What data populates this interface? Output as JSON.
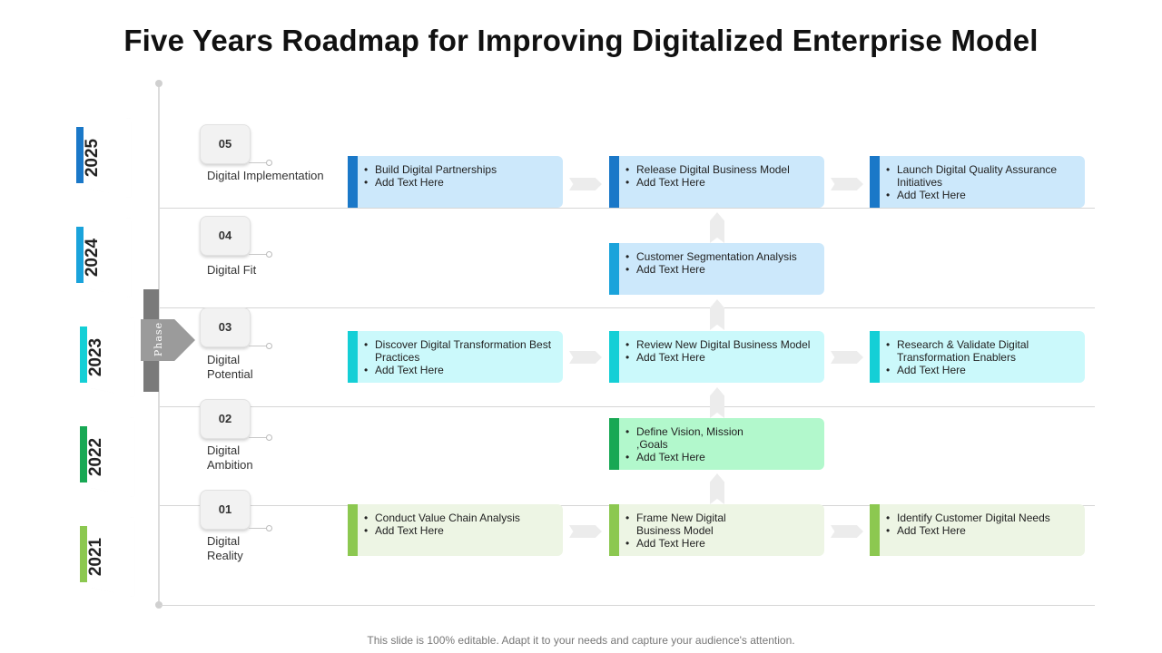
{
  "title": "Five Years Roadmap for Improving Digitalized Enterprise Model",
  "footer": "This slide is 100% editable. Adapt it to your needs and capture your audience's attention.",
  "phase_label": "Phase",
  "colors": {
    "2025": "#1a78c8",
    "2024": "#1aa3db",
    "2023": "#14cfd6",
    "2022": "#18a854",
    "2021": "#8cc850"
  },
  "years": [
    "2025",
    "2024",
    "2023",
    "2022",
    "2021"
  ],
  "phases": [
    {
      "number": "05",
      "name": "Digital Implementation"
    },
    {
      "number": "04",
      "name": "Digital Fit"
    },
    {
      "number": "03",
      "name": "Digital Potential"
    },
    {
      "number": "02",
      "name": "Digital Ambition"
    },
    {
      "number": "01",
      "name": "Digital Reality"
    }
  ],
  "cards": {
    "r2025": [
      [
        "Build Digital Partnerships",
        "Add Text Here"
      ],
      [
        "Release Digital Business Model",
        "Add Text Here"
      ],
      [
        "Launch Digital Quality Assurance Initiatives",
        "Add Text Here"
      ]
    ],
    "r2024": [
      [
        "Customer Segmentation Analysis",
        "Add Text Here"
      ]
    ],
    "r2023": [
      [
        "Discover Digital Transformation Best Practices",
        "Add Text Here"
      ],
      [
        "Review New Digital Business Model",
        "Add Text Here"
      ],
      [
        "Research & Validate Digital Transformation Enablers",
        "Add Text Here"
      ]
    ],
    "r2022": [
      [
        "Define Vision, Mission ,Goals",
        "Add Text Here"
      ]
    ],
    "r2021": [
      [
        "Conduct Value Chain Analysis",
        "Add Text Here"
      ],
      [
        "Frame New Digital Business Model",
        "Add Text Here"
      ],
      [
        "Identify Customer Digital Needs",
        "Add Text Here"
      ]
    ]
  }
}
